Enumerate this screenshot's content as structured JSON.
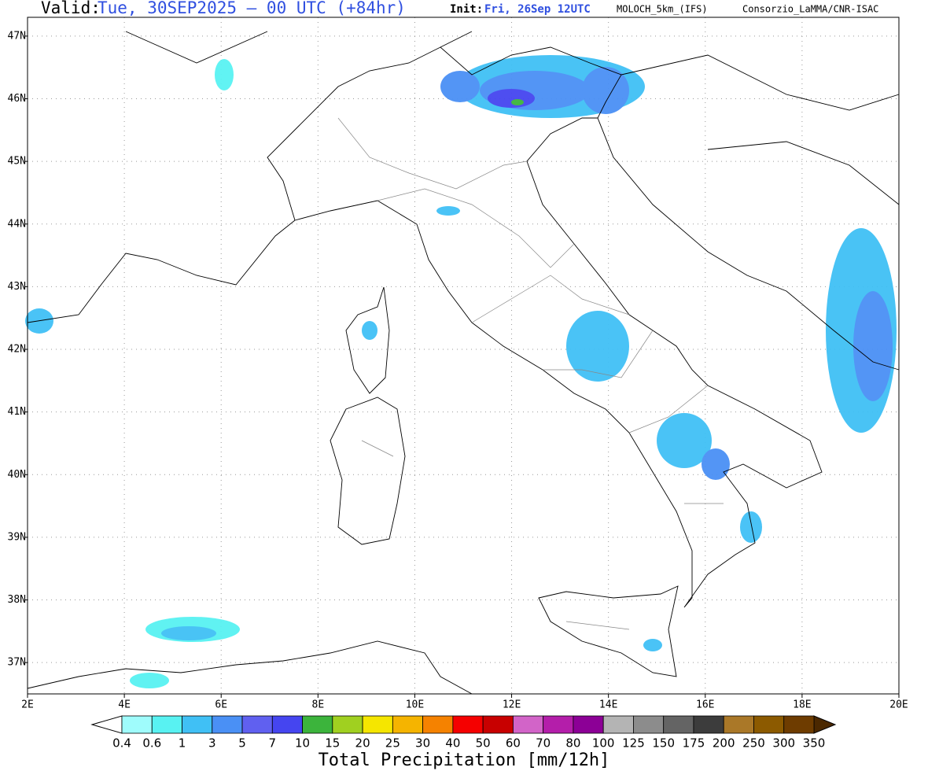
{
  "header": {
    "valid_label": "Valid:",
    "valid_time": "Tue, 30SEP2025 – 00 UTC (+84hr)",
    "init_label": "Init:",
    "init_time": "Fri, 26Sep 12UTC",
    "model": "MOLOCH_5km_(IFS)",
    "credit": "Consorzio_LaMMA/CNR-ISAC"
  },
  "map": {
    "xlim": [
      2,
      20
    ],
    "ylim": [
      36.5,
      47.3
    ],
    "xticks": [
      {
        "value": 2,
        "label": "2E"
      },
      {
        "value": 4,
        "label": "4E"
      },
      {
        "value": 6,
        "label": "6E"
      },
      {
        "value": 8,
        "label": "8E"
      },
      {
        "value": 10,
        "label": "10E"
      },
      {
        "value": 12,
        "label": "12E"
      },
      {
        "value": 14,
        "label": "14E"
      },
      {
        "value": 16,
        "label": "16E"
      },
      {
        "value": 18,
        "label": "18E"
      },
      {
        "value": 20,
        "label": "20E"
      }
    ],
    "yticks": [
      {
        "value": 47,
        "label": "47N"
      },
      {
        "value": 46,
        "label": "46N"
      },
      {
        "value": 45,
        "label": "45N"
      },
      {
        "value": 44,
        "label": "44N"
      },
      {
        "value": 43,
        "label": "43N"
      },
      {
        "value": 42,
        "label": "42N"
      },
      {
        "value": 41,
        "label": "41N"
      },
      {
        "value": 40,
        "label": "40N"
      },
      {
        "value": 39,
        "label": "39N"
      },
      {
        "value": 38,
        "label": "38N"
      },
      {
        "value": 37,
        "label": "37N"
      }
    ],
    "grid": true
  },
  "colorbar": {
    "title": "Total Precipitation [mm/12h]",
    "levels": [
      0.4,
      0.6,
      1,
      3,
      5,
      7,
      10,
      15,
      20,
      25,
      30,
      40,
      50,
      60,
      70,
      80,
      100,
      125,
      150,
      175,
      200,
      250,
      300,
      350
    ],
    "colors": [
      "#9ffcfc",
      "#58f2f2",
      "#40c0f5",
      "#4a90f5",
      "#6060f0",
      "#4545f0",
      "#3cb43c",
      "#a0d020",
      "#f5e600",
      "#f5b400",
      "#f58200",
      "#f50000",
      "#c80000",
      "#d264c8",
      "#b41eaa",
      "#8c0096",
      "#b4b4b4",
      "#8c8c8c",
      "#646464",
      "#3c3c3c",
      "#aa7828",
      "#8c5a00",
      "#6e3c00"
    ],
    "under_color": "#ffffff",
    "over_color": "#4b2800"
  }
}
